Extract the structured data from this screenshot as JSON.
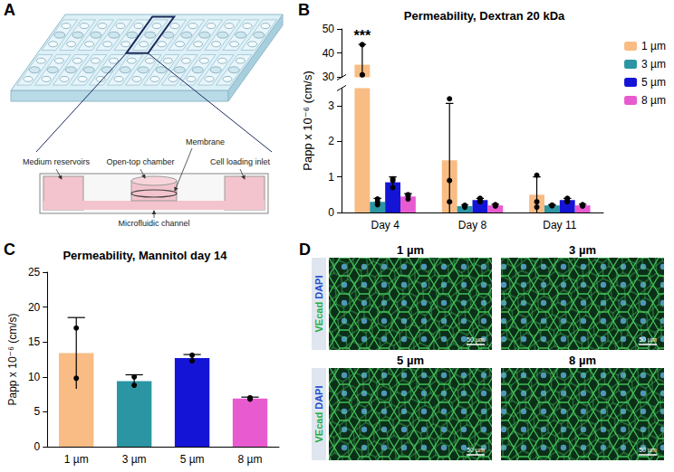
{
  "panel_letters": [
    "A",
    "B",
    "C",
    "D"
  ],
  "diagram": {
    "medium_reservoirs": "Medium reservoirs",
    "open_top_chamber": "Open-top chamber",
    "membrane": "Membrane",
    "cell_loading_inlet": "Cell loading inlet",
    "microfluidic_channel": "Microfluidic channel"
  },
  "chart_data": [
    {
      "type": "bar",
      "title": "Permeability, Dextran 20 kDa",
      "y_label": "Papp x 10⁻⁶ (cm/s)",
      "categories": [
        "Day 4",
        "Day 8",
        "Day 11"
      ],
      "series": [
        {
          "name": "1 µm",
          "color": "#F8BC84",
          "values": [
            35.2,
            1.47,
            0.5
          ],
          "errors": [
            8.4,
            1.6,
            0.5
          ],
          "points": [
            [
              43.5,
              31,
              31
            ],
            [
              3.2,
              0.9,
              0.3
            ],
            [
              1.05,
              0.3,
              0.15
            ]
          ]
        },
        {
          "name": "3 µm",
          "color": "#2B95A4",
          "values": [
            0.3,
            0.18,
            0.2
          ],
          "errors": [
            0.1,
            0.03,
            0.02
          ],
          "points": [
            [
              0.38,
              0.3,
              0.22
            ],
            [
              0.2,
              0.15,
              0.19
            ],
            [
              0.21,
              0.2,
              0.19
            ]
          ]
        },
        {
          "name": "5 µm",
          "color": "#1414D6",
          "values": [
            0.85,
            0.35,
            0.35
          ],
          "errors": [
            0.15,
            0.05,
            0.05
          ],
          "points": [
            [
              0.95,
              0.9,
              0.7
            ],
            [
              0.4,
              0.3,
              0.35
            ],
            [
              0.4,
              0.35,
              0.3
            ]
          ]
        },
        {
          "name": "8 µm",
          "color": "#E85BD0",
          "values": [
            0.45,
            0.2,
            0.2
          ],
          "errors": [
            0.08,
            0.03,
            0.03
          ],
          "points": [
            [
              0.5,
              0.38,
              0.47
            ],
            [
              0.22,
              0.18,
              0.2
            ],
            [
              0.22,
              0.18,
              0.2
            ]
          ]
        }
      ],
      "ylim": [
        [
          0,
          3.5
        ],
        [
          30,
          50
        ]
      ],
      "yticks": [
        [
          0,
          1,
          2,
          3
        ],
        [
          30,
          40,
          50
        ]
      ],
      "annotations": [
        {
          "text": "***",
          "category": "Day 4",
          "series": "1 µm"
        }
      ],
      "legend": "right",
      "grid": false
    },
    {
      "type": "bar",
      "title": "Permeability, Mannitol day 14",
      "y_label": "Papp x 10⁻⁶ (cm/s)",
      "categories": [
        "1 µm",
        "3 µm",
        "5 µm",
        "8 µm"
      ],
      "values": [
        13.4,
        9.4,
        12.7,
        6.9
      ],
      "errors": [
        5.1,
        0.9,
        0.5,
        0.2
      ],
      "points": [
        [
          17,
          9.8
        ],
        [
          10,
          8.8
        ],
        [
          13.1,
          12.3
        ],
        [
          7,
          6.8
        ]
      ],
      "colors": [
        "#F8BC84",
        "#2B95A4",
        "#1414D6",
        "#E85BD0"
      ],
      "ylim": [
        0,
        25
      ],
      "yticks": [
        0,
        5,
        10,
        15,
        20,
        25
      ],
      "grid": false
    }
  ],
  "images": {
    "stain": [
      "VEcad",
      "DAPI"
    ],
    "panels": [
      {
        "title": "1 µm",
        "scale_bar": "50 µm"
      },
      {
        "title": "3 µm",
        "scale_bar": "50 µm"
      },
      {
        "title": "5 µm",
        "scale_bar": "50 µm"
      },
      {
        "title": "8 µm",
        "scale_bar": "50 µm"
      }
    ]
  }
}
